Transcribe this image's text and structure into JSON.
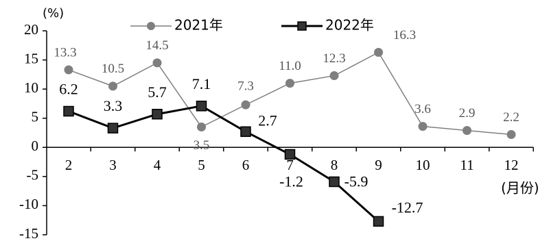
{
  "chart_data": {
    "type": "line",
    "y_label": "(%)",
    "x_label": "(月份)",
    "categories": [
      "2",
      "3",
      "4",
      "5",
      "6",
      "7",
      "8",
      "9",
      "10",
      "11",
      "12"
    ],
    "series": [
      {
        "name": "2021年",
        "color": "#7f7f7f",
        "marker": "circle",
        "values": [
          13.3,
          10.5,
          14.5,
          3.5,
          7.3,
          11.0,
          12.3,
          16.3,
          3.6,
          2.9,
          2.2
        ],
        "value_labels": [
          "13.3",
          "10.5",
          "14.5",
          "3.5",
          "7.3",
          "11.0",
          "12.3",
          "16.3",
          "3.6",
          "2.9",
          "2.2"
        ]
      },
      {
        "name": "2022年",
        "color": "#000000",
        "marker": "square",
        "values": [
          6.2,
          3.3,
          5.7,
          7.1,
          2.7,
          -1.2,
          -5.9,
          -12.7,
          null,
          null,
          null
        ]
      }
    ],
    "ylim": [
      -15,
      20
    ],
    "yticks": [
      -15,
      -10,
      -5,
      0,
      5,
      10,
      15,
      20
    ]
  }
}
